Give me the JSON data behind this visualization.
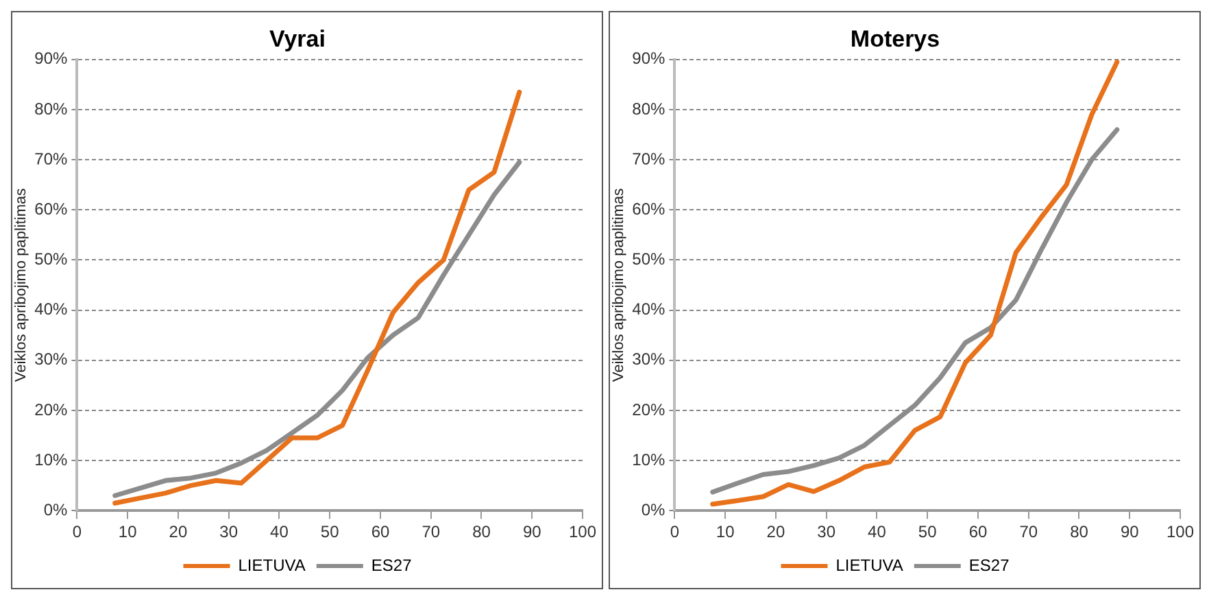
{
  "chart_data": [
    {
      "type": "line",
      "title": "Vyrai",
      "ylabel": "Veiklos apribojimo paplitimas",
      "x": [
        7.5,
        12.5,
        17.5,
        22.5,
        27.5,
        32.5,
        37.5,
        42.5,
        47.5,
        52.5,
        57.5,
        62.5,
        67.5,
        72.5,
        77.5,
        82.5,
        87.5
      ],
      "series": [
        {
          "name": "LIETUVA",
          "color": "#e8711b",
          "values": [
            1.5,
            2.5,
            3.5,
            5,
            6,
            5.5,
            10,
            14.5,
            14.5,
            17,
            28,
            39.5,
            45.5,
            50,
            64,
            67.5,
            83.5
          ]
        },
        {
          "name": "ES27",
          "color": "#8c8c8c",
          "values": [
            3,
            4.5,
            6,
            6.5,
            7.5,
            9.5,
            12,
            15.5,
            19,
            24,
            30.5,
            35,
            38.5,
            47,
            55,
            63,
            69.5
          ]
        }
      ],
      "xlim": [
        0,
        100
      ],
      "xticks": [
        0,
        10,
        20,
        30,
        40,
        50,
        60,
        70,
        80,
        90,
        100
      ],
      "ylim": [
        0,
        90
      ],
      "yticks": [
        {
          "value": 0,
          "label": "0%"
        },
        {
          "value": 10,
          "label": "10%"
        },
        {
          "value": 20,
          "label": "20%"
        },
        {
          "value": 30,
          "label": "30%"
        },
        {
          "value": 40,
          "label": "40%"
        },
        {
          "value": 50,
          "label": "50%"
        },
        {
          "value": 60,
          "label": "60%"
        },
        {
          "value": 70,
          "label": "70%"
        },
        {
          "value": 80,
          "label": "80%"
        },
        {
          "value": 90,
          "label": "90%"
        }
      ],
      "grid": "y",
      "legend": "bottom",
      "marker": "none",
      "line_style": "solid"
    },
    {
      "type": "line",
      "title": "Moterys",
      "ylabel": "Veiklos apribojimo paplitimas",
      "x": [
        7.5,
        12.5,
        17.5,
        22.5,
        27.5,
        32.5,
        37.5,
        42.5,
        47.5,
        52.5,
        57.5,
        62.5,
        67.5,
        72.5,
        77.5,
        82.5,
        87.5
      ],
      "series": [
        {
          "name": "LIETUVA",
          "color": "#e8711b",
          "values": [
            1.3,
            2,
            2.8,
            5.2,
            3.8,
            6,
            8.7,
            9.7,
            16,
            18.7,
            29.5,
            35,
            51.5,
            58.5,
            65,
            79,
            89.5
          ]
        },
        {
          "name": "ES27",
          "color": "#8c8c8c",
          "values": [
            3.7,
            5.5,
            7.2,
            7.8,
            9,
            10.5,
            13,
            17,
            21,
            26.5,
            33.5,
            36.5,
            42,
            52,
            61.5,
            70,
            76
          ]
        }
      ],
      "xlim": [
        0,
        100
      ],
      "xticks": [
        0,
        10,
        20,
        30,
        40,
        50,
        60,
        70,
        80,
        90,
        100
      ],
      "ylim": [
        0,
        90
      ],
      "yticks": [
        {
          "value": 0,
          "label": "0%"
        },
        {
          "value": 10,
          "label": "10%"
        },
        {
          "value": 20,
          "label": "20%"
        },
        {
          "value": 30,
          "label": "30%"
        },
        {
          "value": 40,
          "label": "40%"
        },
        {
          "value": 50,
          "label": "50%"
        },
        {
          "value": 60,
          "label": "60%"
        },
        {
          "value": 70,
          "label": "70%"
        },
        {
          "value": 80,
          "label": "80%"
        },
        {
          "value": 90,
          "label": "90%"
        }
      ],
      "grid": "y",
      "legend": "bottom",
      "marker": "none",
      "line_style": "solid"
    }
  ]
}
